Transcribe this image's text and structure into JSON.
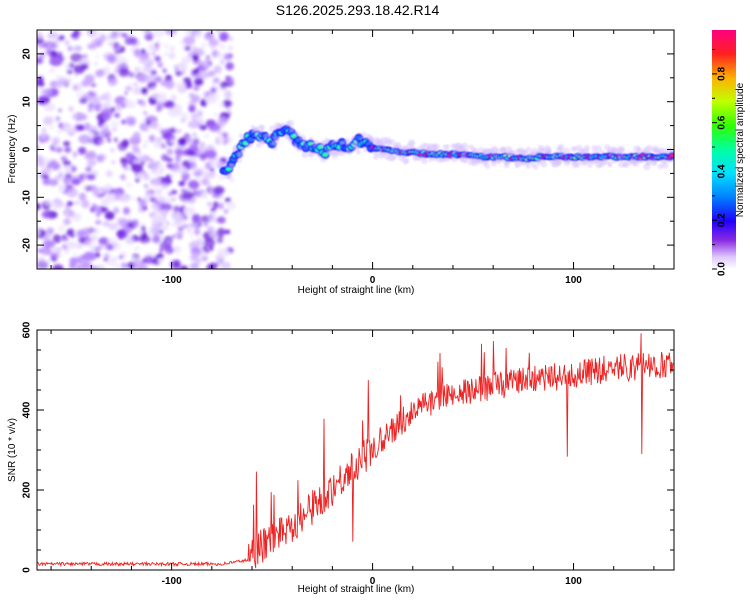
{
  "title": "S126.2025.293.18.42.R14",
  "chart_data": [
    {
      "type": "heatmap",
      "name": "spectrogram",
      "xlabel": "Height of straight line (km)",
      "ylabel": "Frequency (Hz)",
      "xlim": [
        -167,
        150
      ],
      "ylim": [
        -25,
        25
      ],
      "xticks": [
        -100,
        0,
        100
      ],
      "yticks": [
        -20,
        -10,
        0,
        10,
        20
      ],
      "noise_region_x": [
        -167,
        -72
      ],
      "ridge": {
        "x": [
          -72,
          -68,
          -64,
          -60,
          -55,
          -50,
          -46,
          -42,
          -38,
          -33,
          -28,
          -24,
          -20,
          -16,
          -12,
          -8,
          -4,
          0,
          5,
          15,
          30,
          45,
          55,
          65,
          75,
          85,
          100,
          115,
          130,
          150
        ],
        "y": [
          -4.5,
          -1.5,
          1.5,
          3,
          2.5,
          1.5,
          3.5,
          4.5,
          2,
          0.5,
          1,
          -1,
          1.5,
          1,
          0,
          1.5,
          2,
          0.5,
          0,
          -0.5,
          -1,
          -1,
          -1.5,
          -1.5,
          -2,
          -1.5,
          -1.5,
          -1.5,
          -1.5,
          -1.5
        ]
      }
    },
    {
      "type": "line",
      "name": "snr",
      "xlabel": "Height of straight line (km)",
      "ylabel": "SNR (10 * v/v)",
      "xlim": [
        -167,
        150
      ],
      "ylim": [
        0,
        600
      ],
      "xticks": [
        -100,
        0,
        100
      ],
      "yticks": [
        0,
        200,
        400,
        600
      ],
      "color": "#ee2222",
      "trend": {
        "x": [
          -167,
          -100,
          -75,
          -62,
          -55,
          -45,
          -35,
          -25,
          -15,
          -5,
          5,
          15,
          25,
          40,
          60,
          80,
          100,
          120,
          150
        ],
        "y": [
          15,
          15,
          15,
          25,
          60,
          100,
          130,
          180,
          230,
          280,
          330,
          375,
          410,
          440,
          460,
          475,
          490,
          505,
          515
        ]
      }
    }
  ],
  "colorbar": {
    "label": "Normalized spectral amplitude",
    "ticks": [
      "0.0",
      "0.2",
      "0.4",
      "0.6",
      "0.8"
    ],
    "tick_values": [
      0,
      0.2,
      0.4,
      0.6,
      0.8
    ],
    "range": [
      0,
      0.98
    ]
  }
}
